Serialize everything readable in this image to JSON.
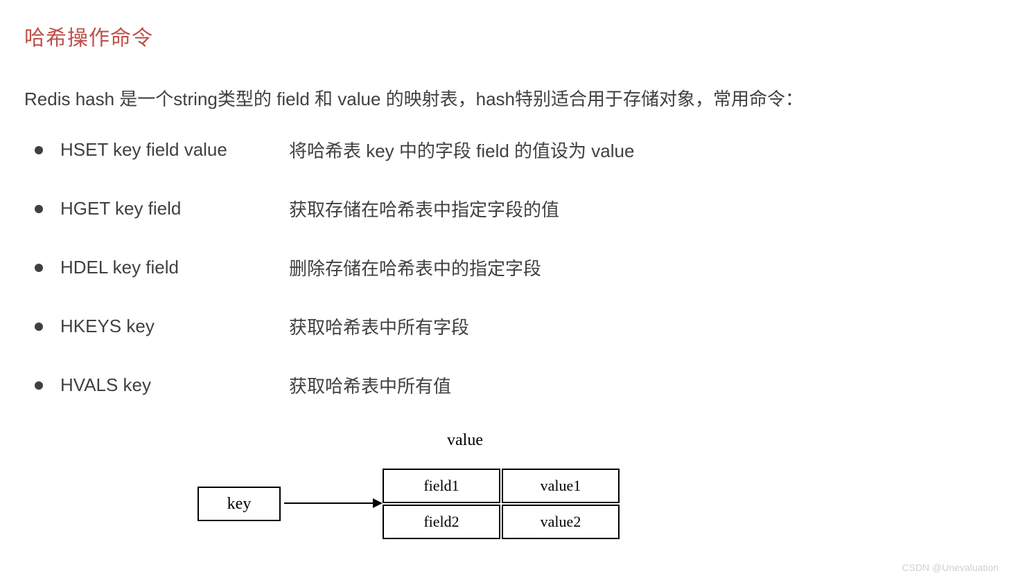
{
  "heading": "哈希操作命令",
  "intro": "Redis hash 是一个string类型的 field 和 value 的映射表，hash特别适合用于存储对象，常用命令：",
  "commands": [
    {
      "cmd": "HSET key field value",
      "desc": "将哈希表 key 中的字段 field 的值设为 value"
    },
    {
      "cmd": "HGET key field",
      "desc": "获取存储在哈希表中指定字段的值"
    },
    {
      "cmd": "HDEL key field",
      "desc": "删除存储在哈希表中的指定字段"
    },
    {
      "cmd": "HKEYS key",
      "desc": "获取哈希表中所有字段"
    },
    {
      "cmd": "HVALS key",
      "desc": "获取哈希表中所有值"
    }
  ],
  "diagram": {
    "value_label": "value",
    "key_label": "key",
    "cells": {
      "r0c0": "field1",
      "r0c1": "value1",
      "r1c0": "field2",
      "r1c1": "value2"
    }
  },
  "watermark": "CSDN @Unevaluation",
  "colors": {
    "heading_color": "#be504b",
    "text_color": "#404040",
    "bullet_color": "#404040",
    "diagram_border": "#000000",
    "background": "#ffffff",
    "watermark_color": "#d0d0d0"
  },
  "fonts": {
    "heading_size": 30,
    "body_size": 26,
    "diagram_size": 24,
    "cell_size": 22,
    "watermark_size": 14
  }
}
